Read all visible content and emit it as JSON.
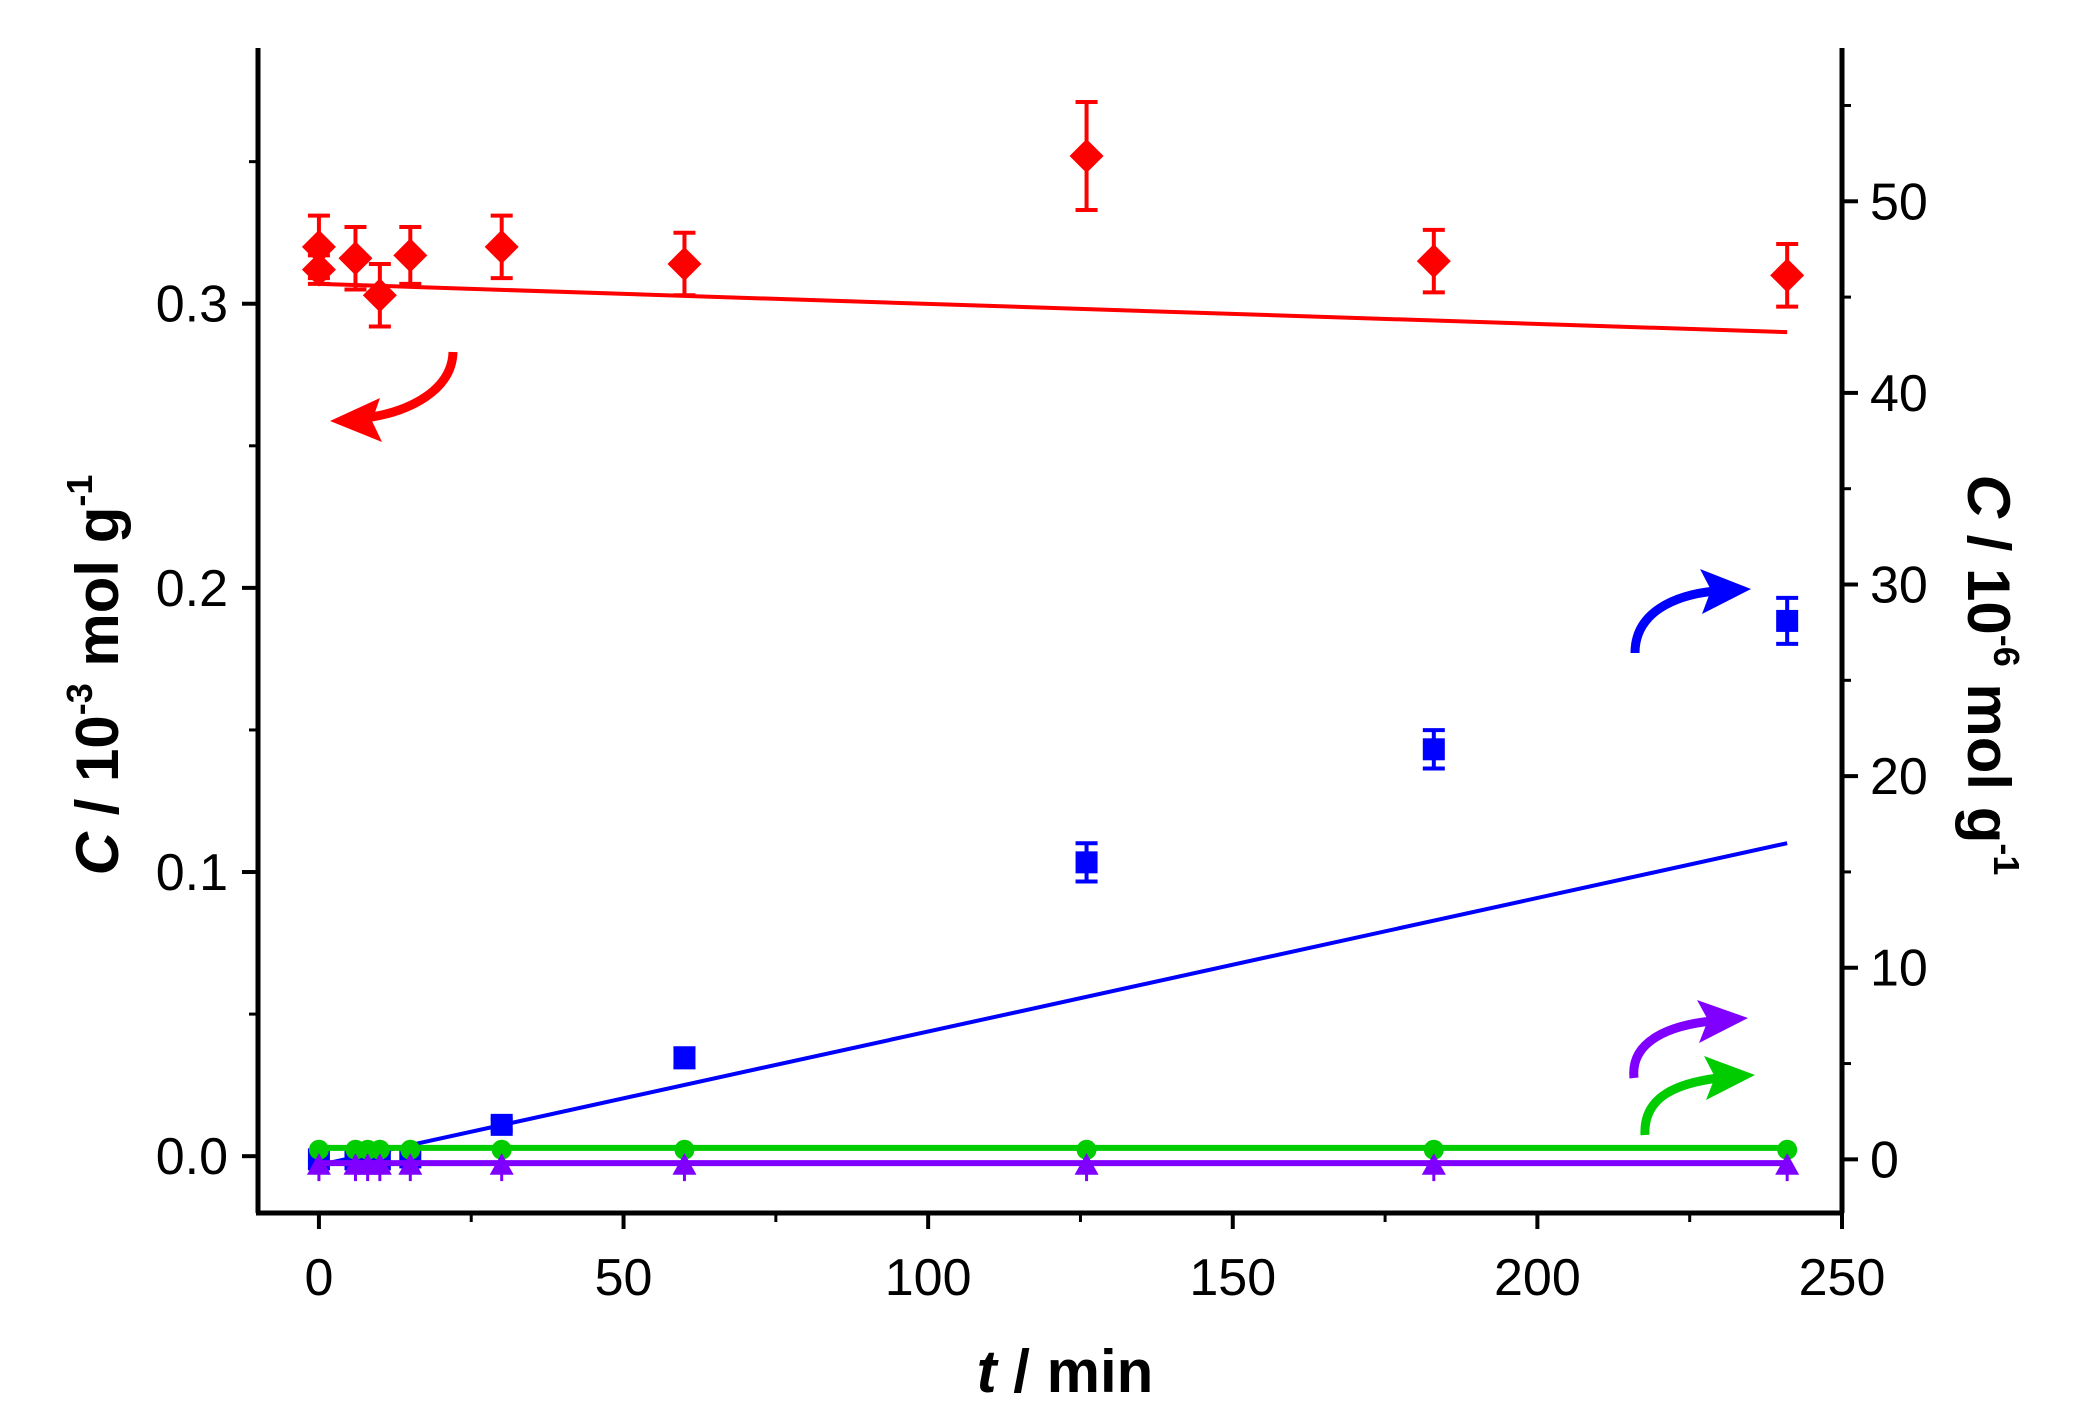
{
  "chart_data": {
    "type": "scatter",
    "xlabel": {
      "var": "t",
      "unit": " / min"
    },
    "ylabel_left": {
      "var": "C",
      "mid": " / 10",
      "exp": "-3",
      "unit": " mol g",
      "unit_exp": "-1"
    },
    "ylabel_right": {
      "var": "C",
      "mid": " / 10",
      "exp": "-6",
      "unit": " mol g",
      "unit_exp": "-1"
    },
    "xlim": [
      -10,
      250
    ],
    "ylim_left": [
      -0.02,
      0.39
    ],
    "ylim_right": [
      -2.8,
      58
    ],
    "x_ticks": [
      0,
      50,
      100,
      150,
      200,
      250
    ],
    "x_tick_labels": [
      "0",
      "50",
      "100",
      "150",
      "200",
      "250"
    ],
    "y_left_ticks": [
      0.0,
      0.1,
      0.2,
      0.3
    ],
    "y_left_tick_labels": [
      "0.0",
      "0.1",
      "0.2",
      "0.3"
    ],
    "y_right_ticks": [
      0,
      10,
      20,
      30,
      40,
      50
    ],
    "y_right_tick_labels": [
      "0",
      "10",
      "20",
      "30",
      "40",
      "50"
    ],
    "series": [
      {
        "name": "red diamonds",
        "axis": "left",
        "marker": "diamond",
        "color": "#ff0000",
        "x": [
          0,
          0,
          6,
          10,
          15,
          30,
          60,
          126,
          183,
          241
        ],
        "y": [
          0.312,
          0.32,
          0.316,
          0.303,
          0.317,
          0.32,
          0.314,
          0.352,
          0.315,
          0.31
        ],
        "yerr": [
          0.005,
          0.011,
          0.011,
          0.011,
          0.01,
          0.011,
          0.011,
          0.019,
          0.011,
          0.011
        ],
        "fit": {
          "x": [
            0,
            241
          ],
          "y": [
            0.307,
            0.29
          ]
        },
        "arrow_direction": "left"
      },
      {
        "name": "blue squares",
        "axis": "right",
        "marker": "square",
        "color": "#0000ff",
        "x": [
          0,
          6,
          8,
          10,
          15,
          30,
          60,
          126,
          183,
          241
        ],
        "y": [
          0,
          0,
          0,
          0,
          0.1,
          1.8,
          5.3,
          15.5,
          21.4,
          28.1
        ],
        "yerr": [
          0,
          0,
          0,
          0,
          0,
          0.3,
          0.5,
          1.0,
          1.0,
          1.2
        ],
        "fit": {
          "x": [
            0,
            241
          ],
          "y": [
            -0.3,
            16.5
          ]
        },
        "arrow_direction": "right"
      },
      {
        "name": "green circles",
        "axis": "right",
        "marker": "circle",
        "color": "#00cc00",
        "x": [
          0,
          6,
          8,
          10,
          15,
          30,
          60,
          126,
          183,
          241
        ],
        "y": [
          0.5,
          0.5,
          0.5,
          0.5,
          0.5,
          0.5,
          0.5,
          0.5,
          0.5,
          0.5
        ],
        "fit": {
          "x": [
            0,
            241
          ],
          "y": [
            0.6,
            0.6
          ]
        },
        "arrow_direction": "right"
      },
      {
        "name": "purple triangles",
        "axis": "right",
        "marker": "triangle",
        "color": "#8000ff",
        "x": [
          0,
          6,
          8,
          10,
          15,
          30,
          60,
          126,
          183,
          241
        ],
        "y": [
          -0.3,
          -0.3,
          -0.3,
          -0.3,
          -0.3,
          -0.3,
          -0.3,
          -0.3,
          -0.3,
          -0.3
        ],
        "fit": {
          "x": [
            0,
            241
          ],
          "y": [
            -0.2,
            -0.2
          ]
        },
        "arrow_direction": "right"
      }
    ]
  }
}
